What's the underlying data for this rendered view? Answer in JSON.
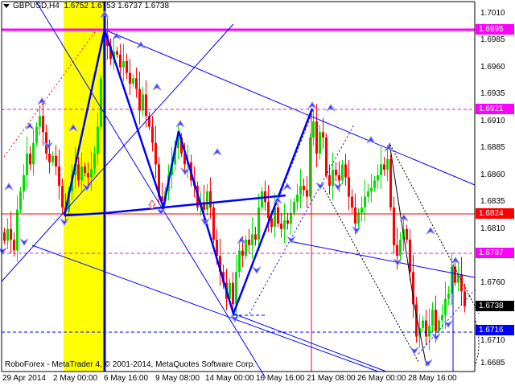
{
  "header": {
    "symbol_timeframe": "GBPUSD,H4",
    "ohlc": "1.6752 1.6753 1.6737 1.6738"
  },
  "footer": {
    "copyright": "RoboForex - MetaTrader 4, © 2001-2014, MetaQuotes Software Corp."
  },
  "chart_data": {
    "type": "candlestick",
    "symbol": "GBPUSD",
    "timeframe": "H4",
    "ylim": [
      1.6677,
      1.702
    ],
    "y_ticks": [
      "1.7010",
      "1.6985",
      "1.6960",
      "1.6935",
      "1.6910",
      "1.6885",
      "1.6860",
      "1.6835",
      "1.6810",
      "1.6760",
      "1.6710",
      "1.6685"
    ],
    "x_ticks": [
      "29 Apr 2014",
      "2 May 00:00",
      "6 May 16:00",
      "9 May 08:00",
      "14 May 00:00",
      "16 May 16:00",
      "21 May 08:00",
      "26 May 00:00",
      "28 May 16:00"
    ],
    "colors": {
      "bull": "#00e000",
      "bear": "#ff0000"
    },
    "closes": [
      1.6799,
      1.681,
      1.68,
      1.679,
      1.6828,
      1.6845,
      1.686,
      1.688,
      1.687,
      1.689,
      1.6905,
      1.6915,
      1.69,
      1.688,
      1.6872,
      1.6878,
      1.6868,
      1.685,
      1.683,
      1.6826,
      1.6845,
      1.686,
      1.687,
      1.6855,
      1.6868,
      1.6862,
      1.6858,
      1.6866,
      1.688,
      1.6905,
      1.695,
      1.699,
      1.698,
      1.6968,
      1.6975,
      1.6972,
      1.696,
      1.6966,
      1.6955,
      1.6945,
      1.695,
      1.694,
      1.692,
      1.6935,
      1.6915,
      1.6905,
      1.689,
      1.687,
      1.684,
      1.6836,
      1.6845,
      1.686,
      1.687,
      1.6885,
      1.6895,
      1.688,
      1.687,
      1.6872,
      1.6855,
      1.685,
      1.683,
      1.6835,
      1.6828,
      1.6845,
      1.683,
      1.68,
      1.6785,
      1.677,
      1.676,
      1.6745,
      1.676,
      1.674,
      1.677,
      1.679,
      1.6785,
      1.68,
      1.6795,
      1.6805,
      1.68,
      1.683,
      1.6845,
      1.6835,
      1.682,
      1.6812,
      1.683,
      1.6815,
      1.681,
      1.6818,
      1.6815,
      1.6825,
      1.6835,
      1.6842,
      1.685,
      1.6846,
      1.684,
      1.6895,
      1.691,
      1.688,
      1.69,
      1.6895,
      1.686,
      1.685,
      1.6865,
      1.686,
      1.6855,
      1.687,
      1.6858,
      1.684,
      1.683,
      1.6815,
      1.6825,
      1.683,
      1.684,
      1.6845,
      1.6848,
      1.6855,
      1.686,
      1.687,
      1.6865,
      1.6875,
      1.683,
      1.6795,
      1.6785,
      1.68,
      1.681,
      1.68,
      1.677,
      1.674,
      1.671,
      1.6718,
      1.6725,
      1.671,
      1.672,
      1.6735,
      1.6715,
      1.6725,
      1.673,
      1.6745,
      1.675,
      1.6775,
      1.676,
      1.6768,
      1.6752,
      1.6738
    ],
    "price_levels": [
      {
        "value": "1.6995",
        "color": "#ff00ff"
      },
      {
        "value": "1.6921",
        "color": "#ff00ff"
      },
      {
        "value": "1.6824",
        "color": "#ff0000"
      },
      {
        "value": "1.6787",
        "color": "#ff00ff"
      },
      {
        "value": "1.6738",
        "color": "#000000"
      },
      {
        "value": "1.6716",
        "color": "#0000ff"
      }
    ]
  }
}
